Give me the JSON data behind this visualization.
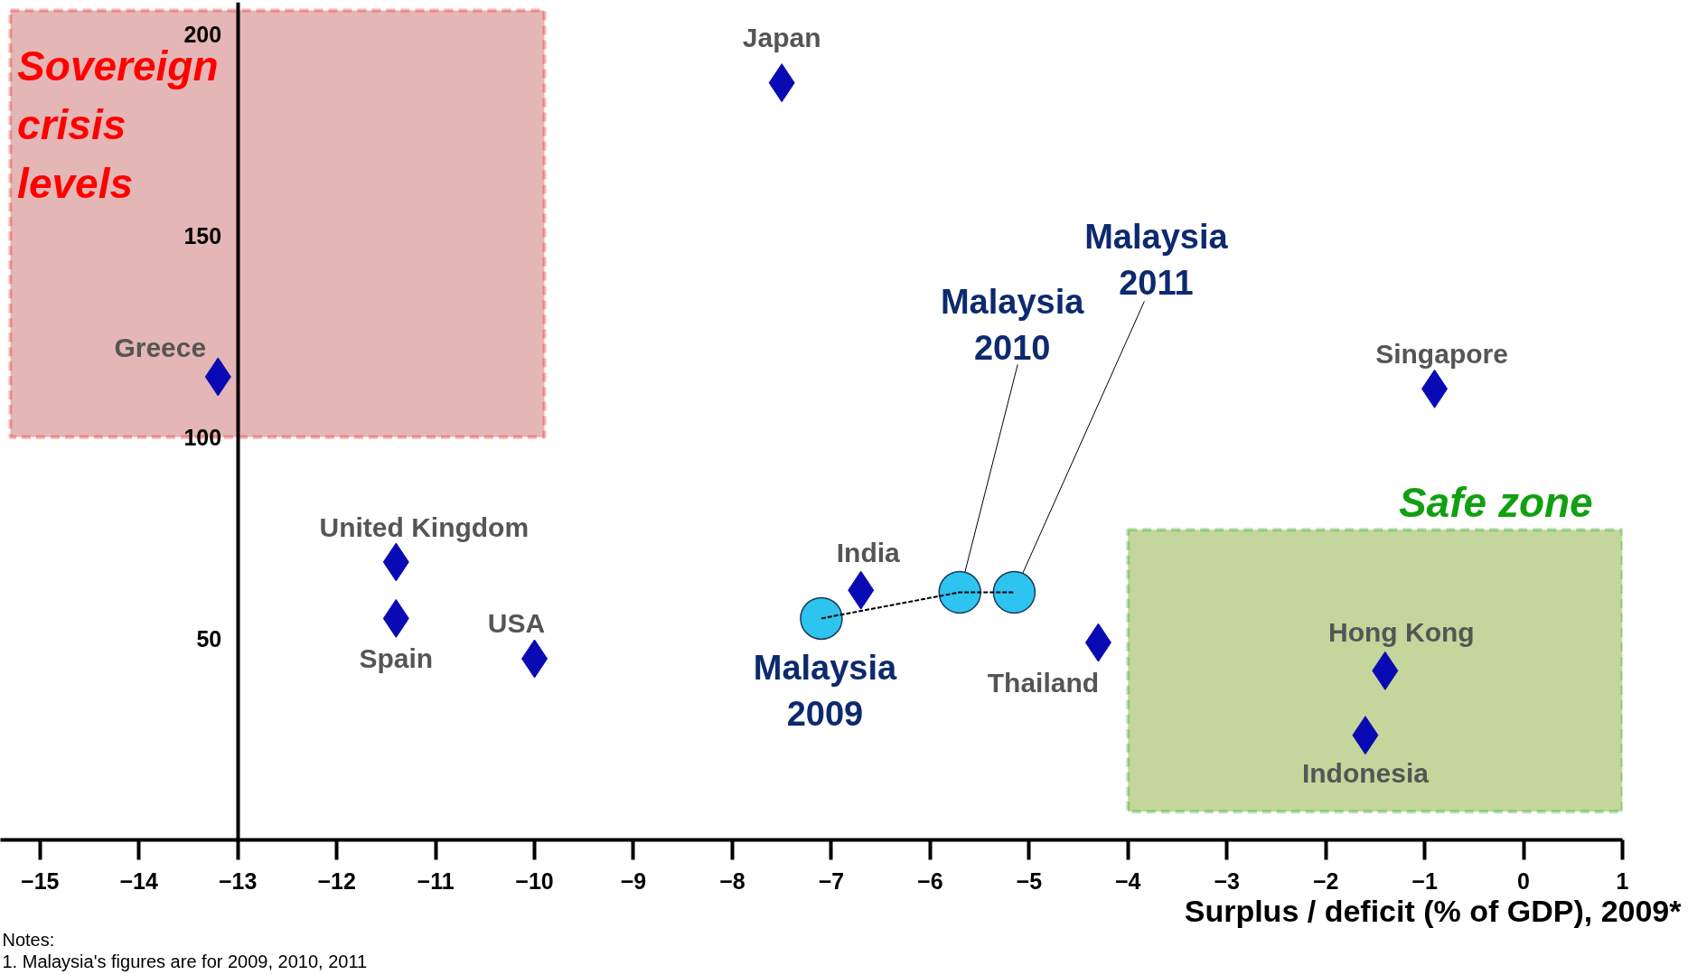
{
  "chart_data": {
    "type": "scatter",
    "xlabel": "Surplus / deficit (% of GDP), 2009*",
    "xlim": [
      -15.4,
      1
    ],
    "ylim": [
      0,
      208
    ],
    "xticks": [
      -15,
      -14,
      -13,
      -12,
      -11,
      -10,
      -9,
      -8,
      -7,
      -6,
      -5,
      -4,
      -3,
      -2,
      -1,
      0,
      1
    ],
    "yticks": [
      50,
      100,
      150,
      200
    ],
    "grid": false,
    "marker": "diamond",
    "series": [
      {
        "color": "#0a0ab4",
        "x": [
          -7.5,
          -13.2,
          -11.4,
          -11.4,
          -10.0,
          -6.7,
          -4.3,
          -1.4,
          -1.6,
          -0.9
        ],
        "values": [
          188,
          115,
          69,
          55,
          45,
          62,
          49,
          42,
          26,
          112
        ]
      },
      {
        "type": "line",
        "marker": "circle",
        "line_style": "dashed",
        "color": "#2ec4f0",
        "x": [
          -7.1,
          -5.7,
          -5.15
        ],
        "values": [
          55,
          61.5,
          61.5
        ]
      }
    ],
    "bands": [
      {
        "axis": "y",
        "from": 100,
        "to": 206,
        "color": "#e4b6b6",
        "label": "Sovereign\ncrisis\nlevels"
      },
      {
        "axis": "y",
        "from": 7,
        "to": 77,
        "color": "#c4d69c",
        "label": "Safe zone"
      }
    ],
    "annotations": [
      {
        "text": "Japan",
        "x": -7.5,
        "y": 188
      },
      {
        "text": "Greece",
        "x": -13.2,
        "y": 115
      },
      {
        "text": "United Kingdom",
        "x": -11.4,
        "y": 69
      },
      {
        "text": "Spain",
        "x": -11.4,
        "y": 55
      },
      {
        "text": "USA",
        "x": -10.0,
        "y": 45
      },
      {
        "text": "India",
        "x": -6.7,
        "y": 62
      },
      {
        "text": "Thailand",
        "x": -4.3,
        "y": 49
      },
      {
        "text": "Hong Kong",
        "x": -1.4,
        "y": 42
      },
      {
        "text": "Indonesia",
        "x": -1.6,
        "y": 26
      },
      {
        "text": "Singapore",
        "x": -0.9,
        "y": 112
      },
      {
        "text": "Malaysia\n2009",
        "x": -7.1,
        "y": 55
      },
      {
        "text": "Malaysia\n2010",
        "x": -5.7,
        "y": 61.5
      },
      {
        "text": "Malaysia\n2011",
        "x": -5.15,
        "y": 61.5
      },
      "Notes:",
      "1.   Malaysia's figures are for 2009, 2010, 2011"
    ]
  }
}
